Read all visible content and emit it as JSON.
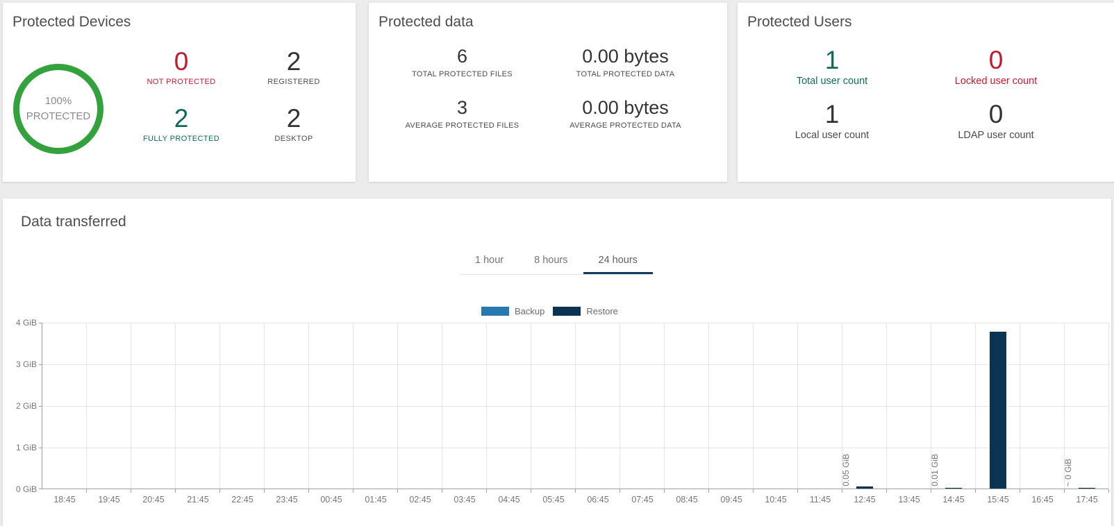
{
  "colors": {
    "ring_green": "#33a13c",
    "red": "#c2192d",
    "teal": "#0f6a58",
    "dark": "#333333",
    "backup_blue": "#2878b0",
    "restore_navy": "#0d3353",
    "tab_underline": "#123a5e"
  },
  "cards": {
    "protected_devices": {
      "title": "Protected Devices",
      "donut": {
        "percent": "100%",
        "label": "PROTECTED"
      },
      "stats": [
        {
          "value": "0",
          "label": "NOT PROTECTED",
          "color": "red"
        },
        {
          "value": "2",
          "label": "REGISTERED",
          "color": "dark"
        },
        {
          "value": "2",
          "label": "FULLY PROTECTED",
          "color": "teal"
        },
        {
          "value": "2",
          "label": "DESKTOP",
          "color": "dark"
        }
      ]
    },
    "protected_data": {
      "title": "Protected data",
      "stats": [
        {
          "value": "6",
          "label": "TOTAL PROTECTED FILES",
          "color": "dark"
        },
        {
          "value": "0.00 bytes",
          "label": "TOTAL PROTECTED DATA",
          "color": "dark"
        },
        {
          "value": "3",
          "label": "AVERAGE PROTECTED FILES",
          "color": "dark"
        },
        {
          "value": "0.00 bytes",
          "label": "AVERAGE PROTECTED DATA",
          "color": "dark"
        }
      ]
    },
    "protected_users": {
      "title": "Protected Users",
      "stats": [
        {
          "value": "1",
          "label": "Total user count",
          "color": "teal"
        },
        {
          "value": "0",
          "label": "Locked user count",
          "color": "red"
        },
        {
          "value": "1",
          "label": "Local user count",
          "color": "dark"
        },
        {
          "value": "0",
          "label": "LDAP user count",
          "color": "dark"
        }
      ]
    }
  },
  "data_transferred": {
    "title": "Data transferred",
    "tabs": [
      {
        "label": "1 hour",
        "active": false
      },
      {
        "label": "8 hours",
        "active": false
      },
      {
        "label": "24 hours",
        "active": true
      }
    ]
  },
  "chart_data": {
    "type": "bar",
    "title": "Data transferred",
    "categories": [
      "18:45",
      "19:45",
      "20:45",
      "21:45",
      "22:45",
      "23:45",
      "00:45",
      "01:45",
      "02:45",
      "03:45",
      "04:45",
      "05:45",
      "06:45",
      "07:45",
      "08:45",
      "09:45",
      "10:45",
      "11:45",
      "12:45",
      "13:45",
      "14:45",
      "15:45",
      "16:45",
      "17:45"
    ],
    "series": [
      {
        "name": "Backup",
        "color": "#2878b0",
        "values": [
          0,
          0,
          0,
          0,
          0,
          0,
          0,
          0,
          0,
          0,
          0,
          0,
          0,
          0,
          0,
          0,
          0,
          0,
          0,
          0,
          0,
          0,
          0,
          0
        ]
      },
      {
        "name": "Restore",
        "color": "#0d3353",
        "values": [
          0,
          0,
          0,
          0,
          0,
          0,
          0,
          0,
          0,
          0,
          0,
          0,
          0,
          0,
          0,
          0,
          0,
          0,
          0.05,
          0,
          0.01,
          3.77,
          0,
          0.001
        ]
      }
    ],
    "value_labels": {
      "18": "0.05 GiB",
      "20": "0.01 GiB",
      "23": "~ 0 GiB"
    },
    "yticks": [
      "4 GiB",
      "3 GiB",
      "2 GiB",
      "1 GiB",
      "0 GiB"
    ],
    "ylim": [
      0,
      4
    ],
    "xlabel": "",
    "ylabel": "",
    "grid": true,
    "legend_position": "top"
  }
}
